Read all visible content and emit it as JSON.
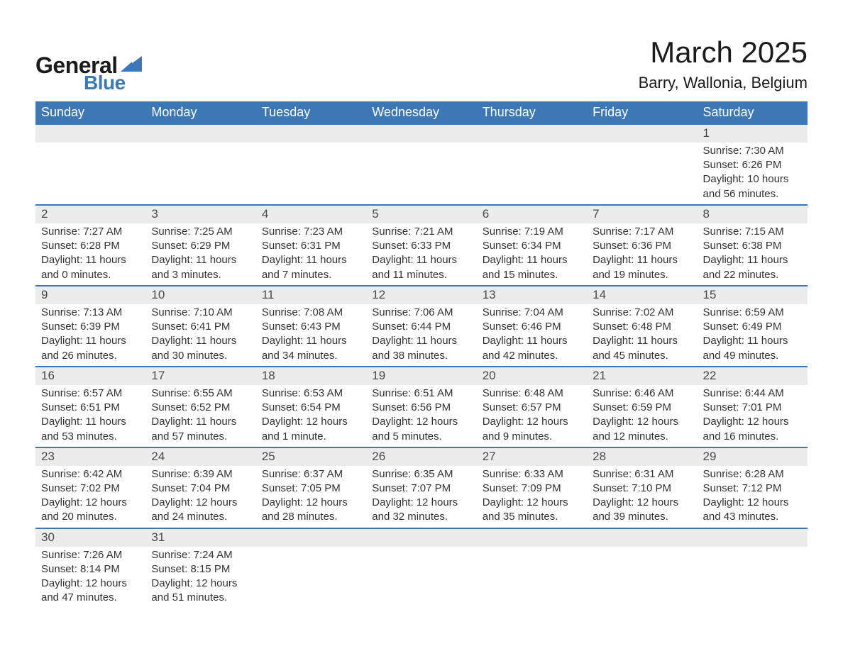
{
  "logo": {
    "word1": "General",
    "word2": "Blue",
    "word1_color": "#1b1b1b",
    "word2_color": "#3d78b6",
    "sail_color": "#3d78b6"
  },
  "header": {
    "month_title": "March 2025",
    "location": "Barry, Wallonia, Belgium"
  },
  "colors": {
    "header_bg": "#3d78b6",
    "header_text": "#ffffff",
    "daynum_bg": "#ececec",
    "border": "#3d78b6",
    "text": "#333333",
    "background": "#ffffff"
  },
  "weekdays": [
    "Sunday",
    "Monday",
    "Tuesday",
    "Wednesday",
    "Thursday",
    "Friday",
    "Saturday"
  ],
  "weeks": [
    [
      null,
      null,
      null,
      null,
      null,
      null,
      {
        "n": "1",
        "sunrise": "Sunrise: 7:30 AM",
        "sunset": "Sunset: 6:26 PM",
        "dl1": "Daylight: 10 hours",
        "dl2": "and 56 minutes."
      }
    ],
    [
      {
        "n": "2",
        "sunrise": "Sunrise: 7:27 AM",
        "sunset": "Sunset: 6:28 PM",
        "dl1": "Daylight: 11 hours",
        "dl2": "and 0 minutes."
      },
      {
        "n": "3",
        "sunrise": "Sunrise: 7:25 AM",
        "sunset": "Sunset: 6:29 PM",
        "dl1": "Daylight: 11 hours",
        "dl2": "and 3 minutes."
      },
      {
        "n": "4",
        "sunrise": "Sunrise: 7:23 AM",
        "sunset": "Sunset: 6:31 PM",
        "dl1": "Daylight: 11 hours",
        "dl2": "and 7 minutes."
      },
      {
        "n": "5",
        "sunrise": "Sunrise: 7:21 AM",
        "sunset": "Sunset: 6:33 PM",
        "dl1": "Daylight: 11 hours",
        "dl2": "and 11 minutes."
      },
      {
        "n": "6",
        "sunrise": "Sunrise: 7:19 AM",
        "sunset": "Sunset: 6:34 PM",
        "dl1": "Daylight: 11 hours",
        "dl2": "and 15 minutes."
      },
      {
        "n": "7",
        "sunrise": "Sunrise: 7:17 AM",
        "sunset": "Sunset: 6:36 PM",
        "dl1": "Daylight: 11 hours",
        "dl2": "and 19 minutes."
      },
      {
        "n": "8",
        "sunrise": "Sunrise: 7:15 AM",
        "sunset": "Sunset: 6:38 PM",
        "dl1": "Daylight: 11 hours",
        "dl2": "and 22 minutes."
      }
    ],
    [
      {
        "n": "9",
        "sunrise": "Sunrise: 7:13 AM",
        "sunset": "Sunset: 6:39 PM",
        "dl1": "Daylight: 11 hours",
        "dl2": "and 26 minutes."
      },
      {
        "n": "10",
        "sunrise": "Sunrise: 7:10 AM",
        "sunset": "Sunset: 6:41 PM",
        "dl1": "Daylight: 11 hours",
        "dl2": "and 30 minutes."
      },
      {
        "n": "11",
        "sunrise": "Sunrise: 7:08 AM",
        "sunset": "Sunset: 6:43 PM",
        "dl1": "Daylight: 11 hours",
        "dl2": "and 34 minutes."
      },
      {
        "n": "12",
        "sunrise": "Sunrise: 7:06 AM",
        "sunset": "Sunset: 6:44 PM",
        "dl1": "Daylight: 11 hours",
        "dl2": "and 38 minutes."
      },
      {
        "n": "13",
        "sunrise": "Sunrise: 7:04 AM",
        "sunset": "Sunset: 6:46 PM",
        "dl1": "Daylight: 11 hours",
        "dl2": "and 42 minutes."
      },
      {
        "n": "14",
        "sunrise": "Sunrise: 7:02 AM",
        "sunset": "Sunset: 6:48 PM",
        "dl1": "Daylight: 11 hours",
        "dl2": "and 45 minutes."
      },
      {
        "n": "15",
        "sunrise": "Sunrise: 6:59 AM",
        "sunset": "Sunset: 6:49 PM",
        "dl1": "Daylight: 11 hours",
        "dl2": "and 49 minutes."
      }
    ],
    [
      {
        "n": "16",
        "sunrise": "Sunrise: 6:57 AM",
        "sunset": "Sunset: 6:51 PM",
        "dl1": "Daylight: 11 hours",
        "dl2": "and 53 minutes."
      },
      {
        "n": "17",
        "sunrise": "Sunrise: 6:55 AM",
        "sunset": "Sunset: 6:52 PM",
        "dl1": "Daylight: 11 hours",
        "dl2": "and 57 minutes."
      },
      {
        "n": "18",
        "sunrise": "Sunrise: 6:53 AM",
        "sunset": "Sunset: 6:54 PM",
        "dl1": "Daylight: 12 hours",
        "dl2": "and 1 minute."
      },
      {
        "n": "19",
        "sunrise": "Sunrise: 6:51 AM",
        "sunset": "Sunset: 6:56 PM",
        "dl1": "Daylight: 12 hours",
        "dl2": "and 5 minutes."
      },
      {
        "n": "20",
        "sunrise": "Sunrise: 6:48 AM",
        "sunset": "Sunset: 6:57 PM",
        "dl1": "Daylight: 12 hours",
        "dl2": "and 9 minutes."
      },
      {
        "n": "21",
        "sunrise": "Sunrise: 6:46 AM",
        "sunset": "Sunset: 6:59 PM",
        "dl1": "Daylight: 12 hours",
        "dl2": "and 12 minutes."
      },
      {
        "n": "22",
        "sunrise": "Sunrise: 6:44 AM",
        "sunset": "Sunset: 7:01 PM",
        "dl1": "Daylight: 12 hours",
        "dl2": "and 16 minutes."
      }
    ],
    [
      {
        "n": "23",
        "sunrise": "Sunrise: 6:42 AM",
        "sunset": "Sunset: 7:02 PM",
        "dl1": "Daylight: 12 hours",
        "dl2": "and 20 minutes."
      },
      {
        "n": "24",
        "sunrise": "Sunrise: 6:39 AM",
        "sunset": "Sunset: 7:04 PM",
        "dl1": "Daylight: 12 hours",
        "dl2": "and 24 minutes."
      },
      {
        "n": "25",
        "sunrise": "Sunrise: 6:37 AM",
        "sunset": "Sunset: 7:05 PM",
        "dl1": "Daylight: 12 hours",
        "dl2": "and 28 minutes."
      },
      {
        "n": "26",
        "sunrise": "Sunrise: 6:35 AM",
        "sunset": "Sunset: 7:07 PM",
        "dl1": "Daylight: 12 hours",
        "dl2": "and 32 minutes."
      },
      {
        "n": "27",
        "sunrise": "Sunrise: 6:33 AM",
        "sunset": "Sunset: 7:09 PM",
        "dl1": "Daylight: 12 hours",
        "dl2": "and 35 minutes."
      },
      {
        "n": "28",
        "sunrise": "Sunrise: 6:31 AM",
        "sunset": "Sunset: 7:10 PM",
        "dl1": "Daylight: 12 hours",
        "dl2": "and 39 minutes."
      },
      {
        "n": "29",
        "sunrise": "Sunrise: 6:28 AM",
        "sunset": "Sunset: 7:12 PM",
        "dl1": "Daylight: 12 hours",
        "dl2": "and 43 minutes."
      }
    ],
    [
      {
        "n": "30",
        "sunrise": "Sunrise: 7:26 AM",
        "sunset": "Sunset: 8:14 PM",
        "dl1": "Daylight: 12 hours",
        "dl2": "and 47 minutes."
      },
      {
        "n": "31",
        "sunrise": "Sunrise: 7:24 AM",
        "sunset": "Sunset: 8:15 PM",
        "dl1": "Daylight: 12 hours",
        "dl2": "and 51 minutes."
      },
      null,
      null,
      null,
      null,
      null
    ]
  ]
}
